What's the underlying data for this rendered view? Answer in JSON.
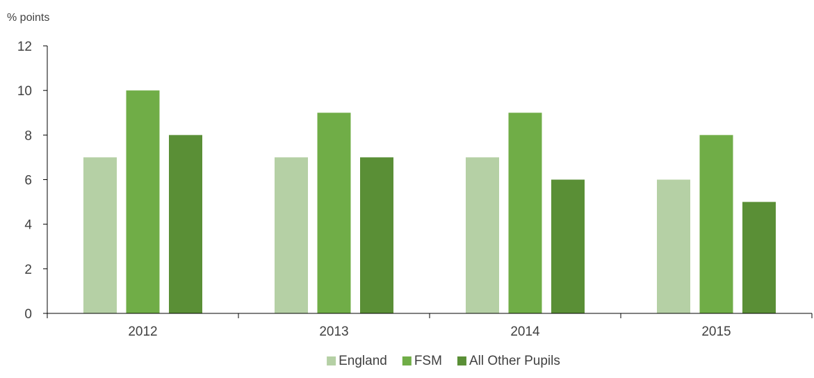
{
  "chart_data": {
    "type": "bar",
    "ylabel": "% points",
    "xlabel": "",
    "title": "",
    "categories": [
      "2012",
      "2013",
      "2014",
      "2015"
    ],
    "ylim": [
      0,
      12
    ],
    "yticks": [
      0,
      2,
      4,
      6,
      8,
      10,
      12
    ],
    "grid": false,
    "legend_position": "bottom-center",
    "series": [
      {
        "name": "England",
        "values": [
          7,
          7,
          7,
          6
        ],
        "color": "#b5d0a5"
      },
      {
        "name": "FSM",
        "values": [
          10,
          9,
          9,
          8
        ],
        "color": "#70ad47"
      },
      {
        "name": "All Other Pupils",
        "values": [
          8,
          7,
          6,
          5
        ],
        "color": "#5a8f36"
      }
    ]
  }
}
